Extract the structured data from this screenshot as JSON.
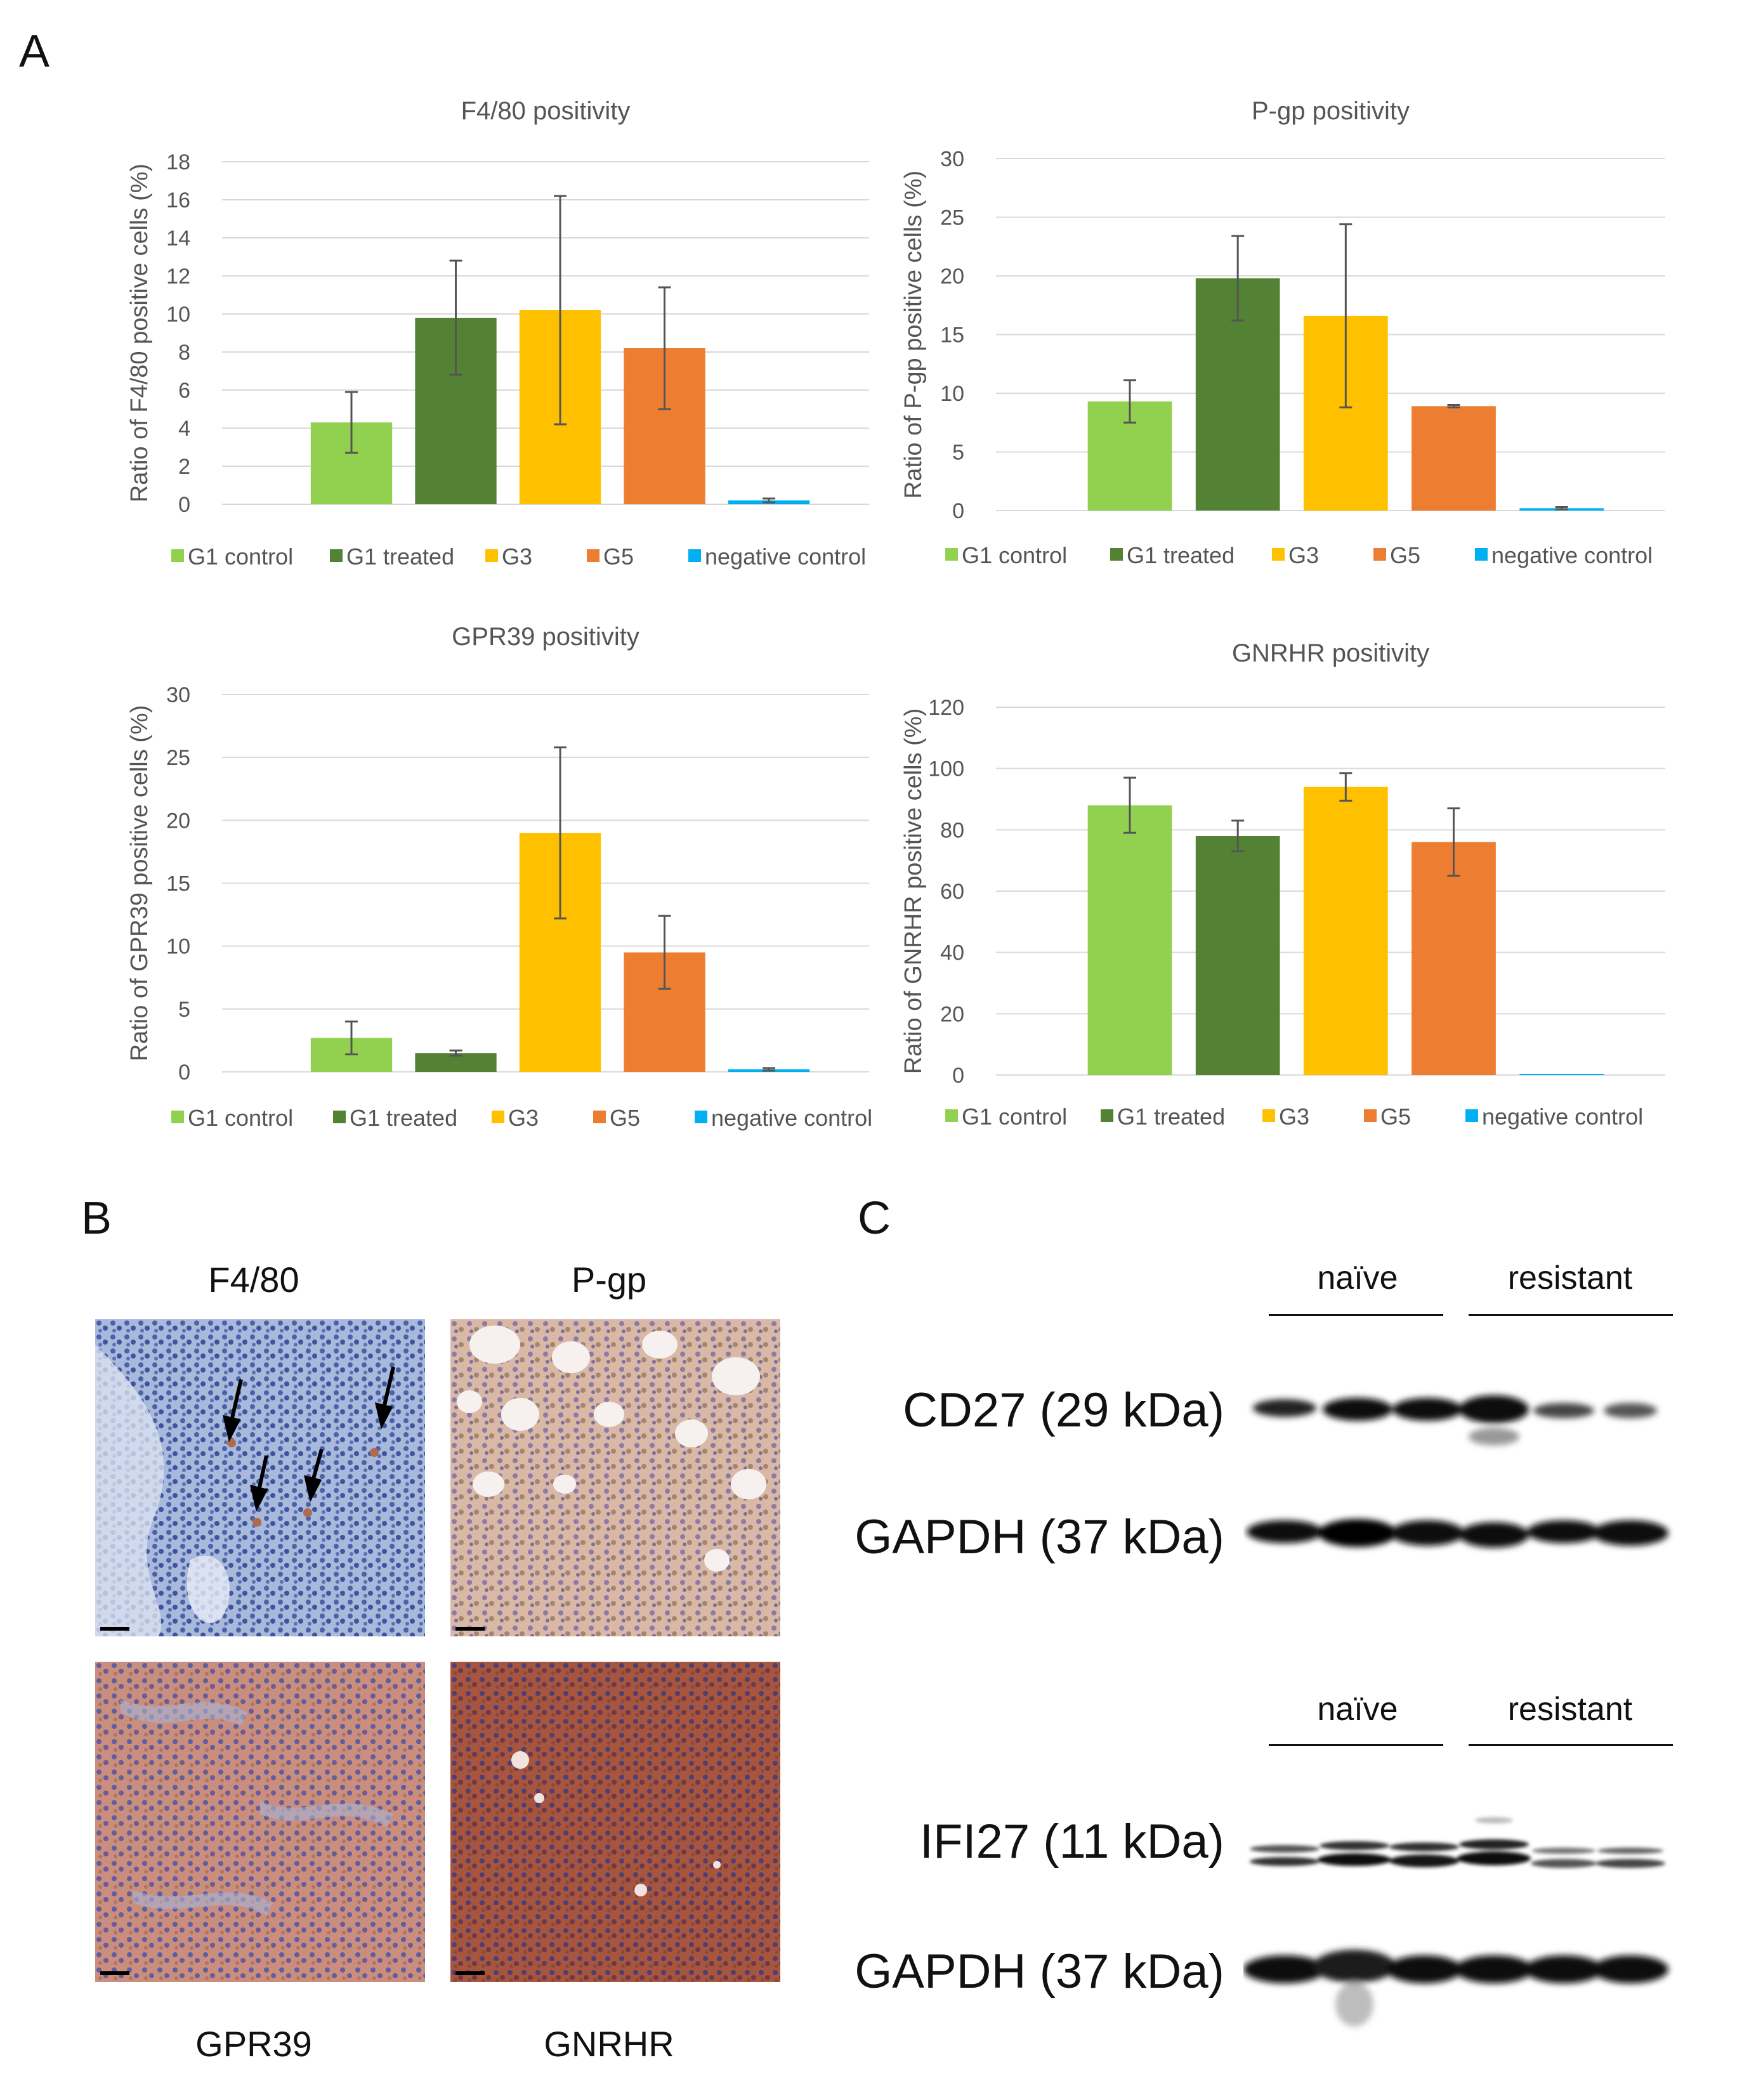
{
  "panels": {
    "A": "A",
    "B": "B",
    "C": "C"
  },
  "legend_labels": [
    "G1 control",
    "G1 treated",
    "G3",
    "G5",
    "negative control"
  ],
  "colors": {
    "G1 control": "#92d050",
    "G1 treated": "#548235",
    "G3": "#ffc000",
    "G5": "#ed7d31",
    "negative control": "#00b0f0"
  },
  "chart_data": [
    {
      "type": "bar",
      "title": "F4/80 positivity",
      "ylabel": "Ratio of F4/80 positive cells (%)",
      "categories": [
        "G1 control",
        "G1 treated",
        "G3",
        "G5",
        "negative control"
      ],
      "values": [
        4.3,
        9.8,
        10.2,
        8.2,
        0.2
      ],
      "errors": [
        1.6,
        3.0,
        6.0,
        3.2,
        0.1
      ],
      "ylim": [
        0,
        18
      ],
      "yticks": [
        0,
        2,
        4,
        6,
        8,
        10,
        12,
        14,
        16,
        18
      ]
    },
    {
      "type": "bar",
      "title": "P-gp positivity",
      "ylabel": "Ratio of P-gp positive cells (%)",
      "categories": [
        "G1 control",
        "G1 treated",
        "G3",
        "G5",
        "negative control"
      ],
      "values": [
        9.3,
        19.8,
        16.6,
        8.9,
        0.2
      ],
      "errors": [
        1.8,
        3.6,
        7.8,
        0.1,
        0.1
      ],
      "ylim": [
        0,
        30
      ],
      "yticks": [
        0,
        5,
        10,
        15,
        20,
        25,
        30
      ]
    },
    {
      "type": "bar",
      "title": "GPR39 positivity",
      "ylabel": "Ratio of GPR39 positive cells (%)",
      "categories": [
        "G1 control",
        "G1 treated",
        "G3",
        "G5",
        "negative control"
      ],
      "values": [
        2.7,
        1.5,
        19.0,
        9.5,
        0.2
      ],
      "errors": [
        1.3,
        0.2,
        6.8,
        2.9,
        0.1
      ],
      "ylim": [
        0,
        30
      ],
      "yticks": [
        0,
        5,
        10,
        15,
        20,
        25,
        30
      ]
    },
    {
      "type": "bar",
      "title": "GNRHR positivity",
      "ylabel": "Ratio of GNRHR positive cells (%)",
      "categories": [
        "G1 control",
        "G1 treated",
        "G3",
        "G5",
        "negative control"
      ],
      "values": [
        88,
        78,
        94,
        76,
        0
      ],
      "errors": [
        9,
        5,
        4.5,
        11,
        0
      ],
      "ylim": [
        0,
        120
      ],
      "yticks": [
        0,
        20,
        40,
        60,
        80,
        100,
        120
      ]
    }
  ],
  "micrographs": {
    "f480": "F4/80",
    "pgp": "P-gp",
    "gpr39": "GPR39",
    "gnrhr": "GNRHR"
  },
  "western": {
    "group1": "naïve",
    "group2": "resistant",
    "cd27": "CD27 (29 kDa)",
    "gapdh": "GAPDH (37 kDa)",
    "ifi27": "IFI27 (11 kDa)"
  }
}
